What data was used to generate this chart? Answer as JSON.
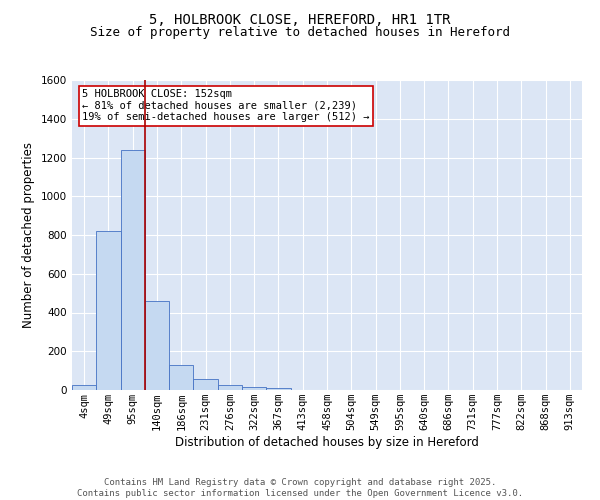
{
  "title_line1": "5, HOLBROOK CLOSE, HEREFORD, HR1 1TR",
  "title_line2": "Size of property relative to detached houses in Hereford",
  "xlabel": "Distribution of detached houses by size in Hereford",
  "ylabel": "Number of detached properties",
  "footer_line1": "Contains HM Land Registry data © Crown copyright and database right 2025.",
  "footer_line2": "Contains public sector information licensed under the Open Government Licence v3.0.",
  "annotation_line1": "5 HOLBROOK CLOSE: 152sqm",
  "annotation_line2": "← 81% of detached houses are smaller (2,239)",
  "annotation_line3": "19% of semi-detached houses are larger (512) →",
  "bar_categories": [
    "4sqm",
    "49sqm",
    "95sqm",
    "140sqm",
    "186sqm",
    "231sqm",
    "276sqm",
    "322sqm",
    "367sqm",
    "413sqm",
    "458sqm",
    "504sqm",
    "549sqm",
    "595sqm",
    "640sqm",
    "686sqm",
    "731sqm",
    "777sqm",
    "822sqm",
    "868sqm",
    "913sqm"
  ],
  "bar_values": [
    25,
    820,
    1240,
    460,
    130,
    58,
    25,
    13,
    8,
    0,
    0,
    0,
    0,
    0,
    0,
    0,
    0,
    0,
    0,
    0,
    0
  ],
  "bar_color": "#c5d9f1",
  "bar_edge_color": "#4472c4",
  "vline_color": "#aa0000",
  "ylim": [
    0,
    1600
  ],
  "yticks": [
    0,
    200,
    400,
    600,
    800,
    1000,
    1200,
    1400,
    1600
  ],
  "bg_color": "#dce6f5",
  "grid_color": "#ffffff",
  "annotation_box_color": "#ffffff",
  "annotation_box_edge": "#cc0000",
  "title_fontsize": 10,
  "subtitle_fontsize": 9,
  "axis_label_fontsize": 8.5,
  "tick_fontsize": 7.5,
  "annotation_fontsize": 7.5,
  "footer_fontsize": 6.5
}
